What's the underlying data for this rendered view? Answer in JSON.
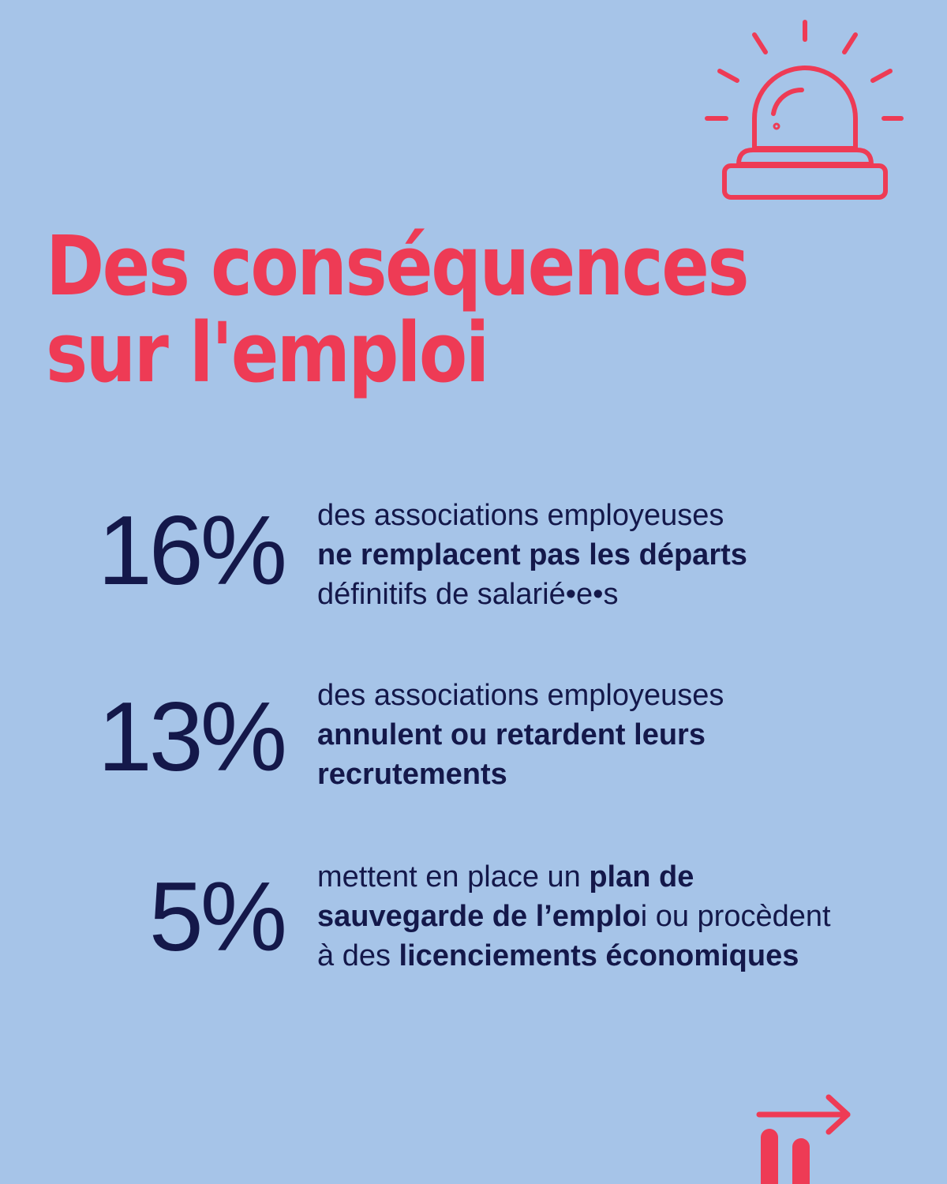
{
  "colors": {
    "background": "#a6c4e8",
    "accent": "#ee3b55",
    "text": "#14184a"
  },
  "icons": {
    "alarm": "alarm-light-icon",
    "next": "arrow-right-icon",
    "logo": "brand-logo-icon"
  },
  "title": {
    "line1": "Des conséquences",
    "line2": "sur l'emploi"
  },
  "stats": [
    {
      "value": "16%",
      "line1": "des associations employeuses",
      "line2_bold": "ne remplacent pas les départs",
      "line3": "définitifs de salarié•e•s"
    },
    {
      "value": "13%",
      "line1": "des associations employeuses",
      "line2_bold": "annulent ou retardent leurs",
      "line3_bold": "recrutements"
    },
    {
      "value": "5%",
      "line1_pre": "mettent en place un ",
      "line1_bold": "plan de",
      "line2_bold": "sauvegarde de l’emplo",
      "line2_post": "i ou procèdent",
      "line3_pre": "à des ",
      "line3_bold": "licenciements économiques"
    }
  ]
}
